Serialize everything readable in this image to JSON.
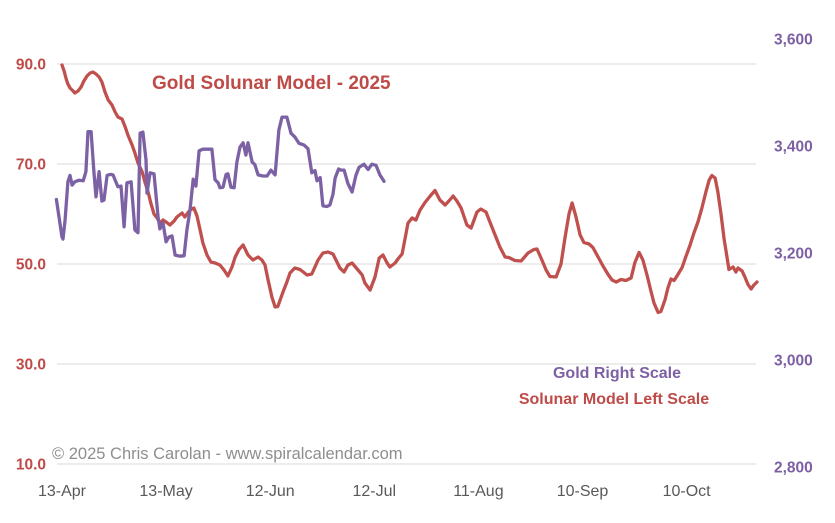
{
  "title": "Gold Solunar Model - 2025",
  "copyright": "© 2025 Chris Carolan - www.spiralcalendar.com",
  "legend": {
    "gold_label": "Gold Right Scale",
    "solunar_label": "Solunar Model Left Scale"
  },
  "colors": {
    "red_line": "#C0504D",
    "red_text": "#BE4B48",
    "purple_line": "#7C61A5",
    "purple_text": "#7D60A3",
    "grid": "#D9D9D9",
    "x_tick_text": "#595959",
    "copyright_text": "#8E8E8E",
    "background": "#FFFFFF"
  },
  "chart_data": {
    "type": "line",
    "title": "Gold Solunar Model - 2025",
    "x_unit": "days since 13-Apr-2025",
    "grid": "horizontal only",
    "legend_position": "inside bottom-right",
    "x_ticks": [
      {
        "label": "13-Apr",
        "day": 0
      },
      {
        "label": "13-May",
        "day": 30
      },
      {
        "label": "12-Jun",
        "day": 60
      },
      {
        "label": "12-Jul",
        "day": 90
      },
      {
        "label": "11-Aug",
        "day": 120
      },
      {
        "label": "10-Sep",
        "day": 150
      },
      {
        "label": "10-Oct",
        "day": 180
      }
    ],
    "left_axis": {
      "series_label": "Solunar Model Left Scale",
      "ticks": [
        "90.0",
        "70.0",
        "50.0",
        "30.0",
        "10.0"
      ],
      "values": [
        90,
        70,
        50,
        30,
        10
      ],
      "range": [
        10,
        90
      ]
    },
    "right_axis": {
      "series_label": "Gold Right Scale",
      "ticks": [
        "3,600",
        "3,400",
        "3,200",
        "3,000",
        "2,800"
      ],
      "values": [
        3600,
        3400,
        3200,
        3000,
        2800
      ],
      "range": [
        2800,
        3600
      ]
    },
    "series": [
      {
        "name": "Solunar Model",
        "axis": "left",
        "color": "#C0504D",
        "points": [
          [
            0,
            89.8
          ],
          [
            0.6,
            88.6
          ],
          [
            1.2,
            87.0
          ],
          [
            1.7,
            86.0
          ],
          [
            2.3,
            85.2
          ],
          [
            3.2,
            84.6
          ],
          [
            3.7,
            84.2
          ],
          [
            4.6,
            84.6
          ],
          [
            5.5,
            85.4
          ],
          [
            6.3,
            86.6
          ],
          [
            7.2,
            87.6
          ],
          [
            8.1,
            88.2
          ],
          [
            8.9,
            88.4
          ],
          [
            9.8,
            88.0
          ],
          [
            10.7,
            87.4
          ],
          [
            11.5,
            86.4
          ],
          [
            12.4,
            84.4
          ],
          [
            13.3,
            82.8
          ],
          [
            14.4,
            81.8
          ],
          [
            15.3,
            80.4
          ],
          [
            16.1,
            79.4
          ],
          [
            17.3,
            79.0
          ],
          [
            18.2,
            77.4
          ],
          [
            19.0,
            75.8
          ],
          [
            20.2,
            73.8
          ],
          [
            21.0,
            72.2
          ],
          [
            21.9,
            70.2
          ],
          [
            23.1,
            68.4
          ],
          [
            23.9,
            66.4
          ],
          [
            24.8,
            64.4
          ],
          [
            25.6,
            62.2
          ],
          [
            26.5,
            60.0
          ],
          [
            27.4,
            59.2
          ],
          [
            28.2,
            58.2
          ],
          [
            29.1,
            58.8
          ],
          [
            30.0,
            58.4
          ],
          [
            31.1,
            57.8
          ],
          [
            32.3,
            58.6
          ],
          [
            33.1,
            59.4
          ],
          [
            34.6,
            60.2
          ],
          [
            35.4,
            59.4
          ],
          [
            36.9,
            60.8
          ],
          [
            38.0,
            61.2
          ],
          [
            38.9,
            59.6
          ],
          [
            39.8,
            56.8
          ],
          [
            40.6,
            54.2
          ],
          [
            41.8,
            51.8
          ],
          [
            42.9,
            50.4
          ],
          [
            44.1,
            50.2
          ],
          [
            45.5,
            49.8
          ],
          [
            46.7,
            48.8
          ],
          [
            47.8,
            47.6
          ],
          [
            49.0,
            49.4
          ],
          [
            49.9,
            51.4
          ],
          [
            51.0,
            52.9
          ],
          [
            52.2,
            53.8
          ],
          [
            53.6,
            51.8
          ],
          [
            55.0,
            50.8
          ],
          [
            56.5,
            51.4
          ],
          [
            57.6,
            50.8
          ],
          [
            58.5,
            49.8
          ],
          [
            59.4,
            46.8
          ],
          [
            60.5,
            43.4
          ],
          [
            61.4,
            41.4
          ],
          [
            62.2,
            41.5
          ],
          [
            63.7,
            44.4
          ],
          [
            64.8,
            46.4
          ],
          [
            65.7,
            48.2
          ],
          [
            67.1,
            49.2
          ],
          [
            68.6,
            48.9
          ],
          [
            69.7,
            48.3
          ],
          [
            70.6,
            47.8
          ],
          [
            72.0,
            48.0
          ],
          [
            73.8,
            50.8
          ],
          [
            75.2,
            52.2
          ],
          [
            76.7,
            52.4
          ],
          [
            78.1,
            52.0
          ],
          [
            80.1,
            49.2
          ],
          [
            81.3,
            48.4
          ],
          [
            82.4,
            49.8
          ],
          [
            83.6,
            50.2
          ],
          [
            85.3,
            48.8
          ],
          [
            86.5,
            47.8
          ],
          [
            87.3,
            46.2
          ],
          [
            88.8,
            44.8
          ],
          [
            90.2,
            47.4
          ],
          [
            91.4,
            51.2
          ],
          [
            92.5,
            51.8
          ],
          [
            93.7,
            50.2
          ],
          [
            94.5,
            49.4
          ],
          [
            96.0,
            50.2
          ],
          [
            96.8,
            51.0
          ],
          [
            98.0,
            52.0
          ],
          [
            98.8,
            54.8
          ],
          [
            99.7,
            58.2
          ],
          [
            100.9,
            59.2
          ],
          [
            102.0,
            58.8
          ],
          [
            103.2,
            60.8
          ],
          [
            104.6,
            62.3
          ],
          [
            106.1,
            63.6
          ],
          [
            107.5,
            64.7
          ],
          [
            108.9,
            62.8
          ],
          [
            110.4,
            61.8
          ],
          [
            111.5,
            62.6
          ],
          [
            112.7,
            63.6
          ],
          [
            113.8,
            62.6
          ],
          [
            115.0,
            61.2
          ],
          [
            116.7,
            57.8
          ],
          [
            117.9,
            57.2
          ],
          [
            119.6,
            60.4
          ],
          [
            120.7,
            61.0
          ],
          [
            122.2,
            60.4
          ],
          [
            123.3,
            58.4
          ],
          [
            124.8,
            55.8
          ],
          [
            126.2,
            53.4
          ],
          [
            127.7,
            51.4
          ],
          [
            128.8,
            51.3
          ],
          [
            130.5,
            50.7
          ],
          [
            132.3,
            50.6
          ],
          [
            134.3,
            52.2
          ],
          [
            136.0,
            52.9
          ],
          [
            136.9,
            53.0
          ],
          [
            138.3,
            50.8
          ],
          [
            139.5,
            48.8
          ],
          [
            140.6,
            47.5
          ],
          [
            142.4,
            47.4
          ],
          [
            143.8,
            50.0
          ],
          [
            145.0,
            55.5
          ],
          [
            146.1,
            60.0
          ],
          [
            147.0,
            62.2
          ],
          [
            148.1,
            59.5
          ],
          [
            149.3,
            55.8
          ],
          [
            150.4,
            54.3
          ],
          [
            151.9,
            54.0
          ],
          [
            153.0,
            53.3
          ],
          [
            154.5,
            51.4
          ],
          [
            155.9,
            49.6
          ],
          [
            157.3,
            48.0
          ],
          [
            158.5,
            46.8
          ],
          [
            159.7,
            46.4
          ],
          [
            161.1,
            46.9
          ],
          [
            162.5,
            46.7
          ],
          [
            164.0,
            47.2
          ],
          [
            165.1,
            50.3
          ],
          [
            166.3,
            52.3
          ],
          [
            167.4,
            50.8
          ],
          [
            168.6,
            47.8
          ],
          [
            169.7,
            44.6
          ],
          [
            170.6,
            42.2
          ],
          [
            171.8,
            40.3
          ],
          [
            172.6,
            40.5
          ],
          [
            173.8,
            42.9
          ],
          [
            174.6,
            45.2
          ],
          [
            175.5,
            47.0
          ],
          [
            176.4,
            46.7
          ],
          [
            177.5,
            47.9
          ],
          [
            178.7,
            49.3
          ],
          [
            179.8,
            51.5
          ],
          [
            181.0,
            53.8
          ],
          [
            182.1,
            56.2
          ],
          [
            183.3,
            58.5
          ],
          [
            184.4,
            61.2
          ],
          [
            185.6,
            64.5
          ],
          [
            186.5,
            66.8
          ],
          [
            187.3,
            67.7
          ],
          [
            188.2,
            67.2
          ],
          [
            189.0,
            64.5
          ],
          [
            189.9,
            60.0
          ],
          [
            190.8,
            55.0
          ],
          [
            191.6,
            51.5
          ],
          [
            192.2,
            48.9
          ],
          [
            193.4,
            49.4
          ],
          [
            194.2,
            48.4
          ],
          [
            194.8,
            49.2
          ],
          [
            196.0,
            48.6
          ],
          [
            196.8,
            47.4
          ],
          [
            197.7,
            45.9
          ],
          [
            198.6,
            45.0
          ],
          [
            199.4,
            45.8
          ],
          [
            200.3,
            46.4
          ]
        ]
      },
      {
        "name": "Gold",
        "axis": "right",
        "color": "#7C61A5",
        "points": [
          [
            -1.6,
            3300
          ],
          [
            0,
            3230
          ],
          [
            0.3,
            3226
          ],
          [
            0.9,
            3262
          ],
          [
            1.7,
            3333
          ],
          [
            2.3,
            3345
          ],
          [
            2.9,
            3327
          ],
          [
            3.7,
            3333
          ],
          [
            4.9,
            3336
          ],
          [
            6.1,
            3335
          ],
          [
            6.9,
            3352
          ],
          [
            7.5,
            3427
          ],
          [
            8.4,
            3427
          ],
          [
            9.2,
            3352
          ],
          [
            9.8,
            3305
          ],
          [
            10.7,
            3352
          ],
          [
            11.5,
            3297
          ],
          [
            12.1,
            3299
          ],
          [
            13.0,
            3345
          ],
          [
            13.9,
            3347
          ],
          [
            14.7,
            3346
          ],
          [
            16.1,
            3324
          ],
          [
            17.0,
            3325
          ],
          [
            17.9,
            3249
          ],
          [
            18.7,
            3331
          ],
          [
            19.9,
            3333
          ],
          [
            21.0,
            3243
          ],
          [
            21.9,
            3238
          ],
          [
            22.5,
            3424
          ],
          [
            23.3,
            3426
          ],
          [
            24.2,
            3374
          ],
          [
            24.5,
            3312
          ],
          [
            25.4,
            3350
          ],
          [
            26.5,
            3348
          ],
          [
            27.7,
            3267
          ],
          [
            28.2,
            3245
          ],
          [
            29.1,
            3256
          ],
          [
            30.0,
            3221
          ],
          [
            30.8,
            3230
          ],
          [
            31.7,
            3232
          ],
          [
            32.6,
            3196
          ],
          [
            34.0,
            3194
          ],
          [
            35.2,
            3195
          ],
          [
            36.0,
            3243
          ],
          [
            36.9,
            3280
          ],
          [
            37.8,
            3338
          ],
          [
            38.6,
            3325
          ],
          [
            39.5,
            3391
          ],
          [
            40.6,
            3394
          ],
          [
            42.1,
            3394
          ],
          [
            43.2,
            3394
          ],
          [
            44.1,
            3337
          ],
          [
            45.0,
            3331
          ],
          [
            45.5,
            3322
          ],
          [
            46.4,
            3323
          ],
          [
            47.3,
            3347
          ],
          [
            47.8,
            3348
          ],
          [
            48.7,
            3323
          ],
          [
            49.6,
            3322
          ],
          [
            50.4,
            3370
          ],
          [
            51.3,
            3398
          ],
          [
            52.2,
            3406
          ],
          [
            53.0,
            3383
          ],
          [
            53.6,
            3406
          ],
          [
            54.8,
            3370
          ],
          [
            55.6,
            3365
          ],
          [
            56.5,
            3346
          ],
          [
            57.9,
            3344
          ],
          [
            59.1,
            3344
          ],
          [
            60.2,
            3355
          ],
          [
            61.4,
            3346
          ],
          [
            62.5,
            3430
          ],
          [
            63.4,
            3454
          ],
          [
            64.8,
            3454
          ],
          [
            66.0,
            3424
          ],
          [
            67.1,
            3417
          ],
          [
            68.3,
            3405
          ],
          [
            69.7,
            3402
          ],
          [
            70.9,
            3395
          ],
          [
            72.0,
            3350
          ],
          [
            72.9,
            3354
          ],
          [
            73.5,
            3335
          ],
          [
            74.4,
            3341
          ],
          [
            75.2,
            3288
          ],
          [
            76.4,
            3287
          ],
          [
            77.2,
            3290
          ],
          [
            78.1,
            3310
          ],
          [
            78.7,
            3340
          ],
          [
            79.7,
            3357
          ],
          [
            80.4,
            3355
          ],
          [
            81.3,
            3355
          ],
          [
            82.4,
            3330
          ],
          [
            83.6,
            3314
          ],
          [
            84.7,
            3345
          ],
          [
            85.6,
            3360
          ],
          [
            87.0,
            3366
          ],
          [
            88.2,
            3356
          ],
          [
            89.3,
            3366
          ],
          [
            90.5,
            3364
          ],
          [
            91.6,
            3346
          ],
          [
            92.8,
            3334
          ]
        ]
      }
    ]
  }
}
